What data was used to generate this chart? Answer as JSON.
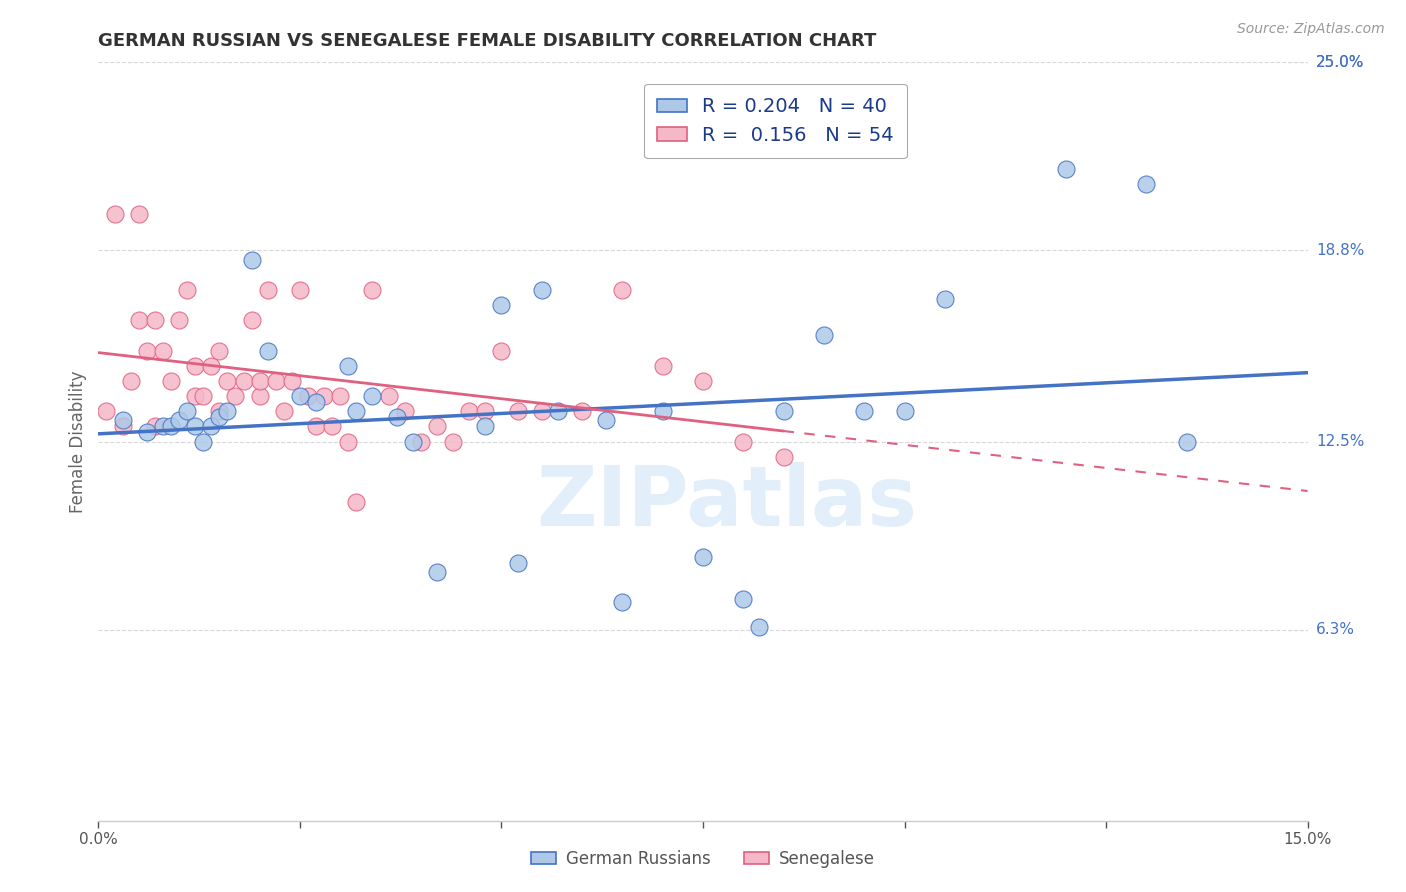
{
  "title": "GERMAN RUSSIAN VS SENEGALESE FEMALE DISABILITY CORRELATION CHART",
  "source": "Source: ZipAtlas.com",
  "ylabel": "Female Disability",
  "x_min": 0.0,
  "x_max": 0.15,
  "y_min": 0.0,
  "y_max": 0.25,
  "x_ticks": [
    0.0,
    0.025,
    0.05,
    0.075,
    0.1,
    0.125,
    0.15
  ],
  "y_ticks": [
    0.063,
    0.125,
    0.188,
    0.25
  ],
  "y_tick_labels": [
    "6.3%",
    "12.5%",
    "18.8%",
    "25.0%"
  ],
  "watermark": "ZIPatlas",
  "color_blue": "#aec9e8",
  "color_pink": "#f5b8c8",
  "line_blue": "#4472c4",
  "line_pink": "#e06080",
  "scatter_blue_x": [
    0.003,
    0.006,
    0.008,
    0.009,
    0.01,
    0.011,
    0.012,
    0.013,
    0.014,
    0.015,
    0.016,
    0.019,
    0.021,
    0.025,
    0.027,
    0.031,
    0.032,
    0.034,
    0.037,
    0.039,
    0.042,
    0.048,
    0.05,
    0.052,
    0.055,
    0.057,
    0.063,
    0.065,
    0.07,
    0.075,
    0.08,
    0.082,
    0.085,
    0.09,
    0.095,
    0.1,
    0.105,
    0.12,
    0.13,
    0.135
  ],
  "scatter_blue_y": [
    0.132,
    0.128,
    0.13,
    0.13,
    0.132,
    0.135,
    0.13,
    0.125,
    0.13,
    0.133,
    0.135,
    0.185,
    0.155,
    0.14,
    0.138,
    0.15,
    0.135,
    0.14,
    0.133,
    0.125,
    0.082,
    0.13,
    0.17,
    0.085,
    0.175,
    0.135,
    0.132,
    0.072,
    0.135,
    0.087,
    0.073,
    0.064,
    0.135,
    0.16,
    0.135,
    0.135,
    0.172,
    0.215,
    0.21,
    0.125
  ],
  "scatter_pink_x": [
    0.001,
    0.002,
    0.003,
    0.004,
    0.005,
    0.005,
    0.006,
    0.007,
    0.007,
    0.008,
    0.009,
    0.01,
    0.011,
    0.012,
    0.012,
    0.013,
    0.014,
    0.015,
    0.015,
    0.016,
    0.017,
    0.018,
    0.019,
    0.02,
    0.02,
    0.021,
    0.022,
    0.023,
    0.024,
    0.025,
    0.026,
    0.027,
    0.028,
    0.029,
    0.03,
    0.031,
    0.032,
    0.034,
    0.036,
    0.038,
    0.04,
    0.042,
    0.044,
    0.046,
    0.048,
    0.05,
    0.052,
    0.055,
    0.06,
    0.065,
    0.07,
    0.075,
    0.08,
    0.085
  ],
  "scatter_pink_y": [
    0.135,
    0.2,
    0.13,
    0.145,
    0.2,
    0.165,
    0.155,
    0.165,
    0.13,
    0.155,
    0.145,
    0.165,
    0.175,
    0.14,
    0.15,
    0.14,
    0.15,
    0.155,
    0.135,
    0.145,
    0.14,
    0.145,
    0.165,
    0.14,
    0.145,
    0.175,
    0.145,
    0.135,
    0.145,
    0.175,
    0.14,
    0.13,
    0.14,
    0.13,
    0.14,
    0.125,
    0.105,
    0.175,
    0.14,
    0.135,
    0.125,
    0.13,
    0.125,
    0.135,
    0.135,
    0.155,
    0.135,
    0.135,
    0.135,
    0.175,
    0.15,
    0.145,
    0.125,
    0.12
  ],
  "background_color": "#ffffff",
  "grid_color": "#d8d8d8"
}
